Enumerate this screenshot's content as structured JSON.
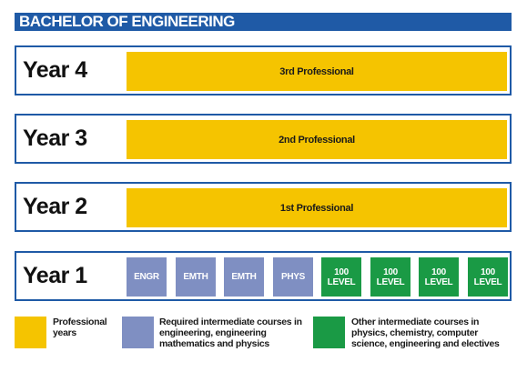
{
  "title": "BACHELOR OF ENGINEERING",
  "years": [
    {
      "label": "Year 4",
      "bar": "3rd Professional"
    },
    {
      "label": "Year 3",
      "bar": "2nd Professional"
    },
    {
      "label": "Year 2",
      "bar": "1st Professional"
    },
    {
      "label": "Year 1",
      "courses": [
        {
          "label": "ENGR",
          "type": "required"
        },
        {
          "label": "EMTH",
          "type": "required"
        },
        {
          "label": "EMTH",
          "type": "required"
        },
        {
          "label": "PHYS",
          "type": "required"
        },
        {
          "label": "100 LEVEL",
          "type": "other"
        },
        {
          "label": "100 LEVEL",
          "type": "other"
        },
        {
          "label": "100 LEVEL",
          "type": "other"
        },
        {
          "label": "100 LEVEL",
          "type": "other"
        }
      ]
    }
  ],
  "legend": [
    {
      "color": "#f5c400",
      "text": "Professional years"
    },
    {
      "color": "#7f8fc2",
      "text": "Required intermediate courses in engineering, engineering mathematics and physics"
    },
    {
      "color": "#1a9a45",
      "text": "Other intermediate courses in physics, chemistry, computer science, engineering and electives"
    }
  ],
  "colors": {
    "title_bg": "#1f5aa6",
    "professional": "#f5c400",
    "required": "#7f8fc2",
    "other": "#1a9a45"
  }
}
